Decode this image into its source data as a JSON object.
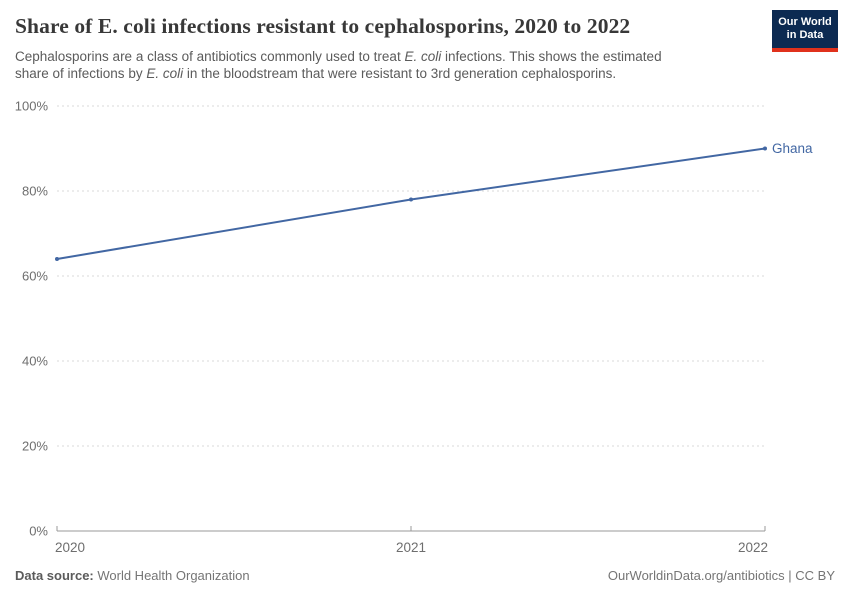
{
  "header": {
    "title": "Share of E. coli infections resistant to cephalosporins, 2020 to 2022",
    "logo": {
      "line1": "Our World",
      "line2": "in Data"
    },
    "logo_colors": {
      "background": "#0c2a52",
      "underline": "#e0311c",
      "text": "#ffffff"
    }
  },
  "subtitle": {
    "lines": [
      [
        {
          "text": "Cephalosporins are a class of antibiotics commonly used to treat ",
          "italic": false
        },
        {
          "text": "E. coli",
          "italic": true
        },
        {
          "text": " infections. This shows the estimated",
          "italic": false
        }
      ],
      [
        {
          "text": "share of infections by ",
          "italic": false
        },
        {
          "text": "E. coli",
          "italic": true
        },
        {
          "text": " in the bloodstream that were resistant to 3rd generation cephalosporins.",
          "italic": false
        }
      ]
    ]
  },
  "chart_data": {
    "type": "line",
    "title": "Share of E. coli infections resistant to cephalosporins, 2020 to 2022",
    "x": [
      2020,
      2021,
      2022
    ],
    "xlim": [
      2020,
      2022
    ],
    "x_tick_labels": [
      "2020",
      "2021",
      "2022"
    ],
    "series": [
      {
        "name": "Ghana",
        "color": "#4267a3",
        "values": [
          64,
          78,
          90
        ]
      }
    ],
    "ylim": [
      0,
      100
    ],
    "yticks": [
      0,
      20,
      40,
      60,
      80,
      100
    ],
    "ytick_labels": [
      "0%",
      "20%",
      "40%",
      "60%",
      "80%",
      "100%"
    ],
    "grid": "horizontal-dashed",
    "legend_position": "end-of-line-label",
    "colors": {
      "gridline": "#d9d9d9",
      "axis": "#999999",
      "tick_label": "#6e6e6e"
    }
  },
  "footer": {
    "source_label": "Data source:",
    "source_value": " World Health Organization",
    "license": "OurWorldinData.org/antibiotics | CC BY"
  }
}
